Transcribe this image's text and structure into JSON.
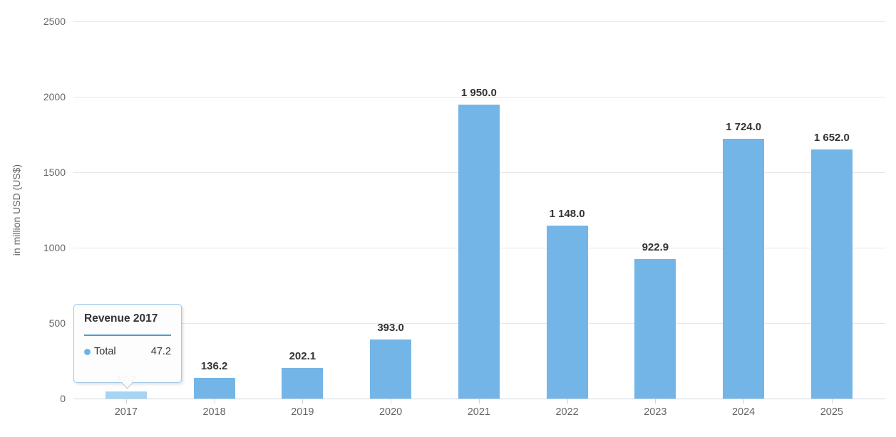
{
  "chart_data": {
    "type": "bar",
    "title": "",
    "categories": [
      "2017",
      "2018",
      "2019",
      "2020",
      "2021",
      "2022",
      "2023",
      "2024",
      "2025"
    ],
    "series": [
      {
        "name": "Total",
        "values": [
          47.2,
          136.2,
          202.1,
          393.0,
          1950.0,
          1148.0,
          922.9,
          1724.0,
          1652.0
        ]
      }
    ],
    "data_labels": [
      "47.2",
      "136.2",
      "202.1",
      "393.0",
      "1 950.0",
      "1 148.0",
      "922.9",
      "1 724.0",
      "1 652.0"
    ],
    "xlabel": "",
    "ylabel": "in million USD (US$)",
    "ylim": [
      0,
      2500
    ],
    "yticks": [
      "0",
      "500",
      "1000",
      "1500",
      "2000",
      "2500"
    ],
    "grid": true,
    "legend_position": "none",
    "highlighted_category": "2017",
    "colors": {
      "bar": "#74b5e8",
      "bar_highlight": "#a6d4f4",
      "gridline": "#e7e7e7",
      "axis_line": "#cfd4da",
      "axis_label": "#666666",
      "data_label": "#333333",
      "axis_title": "#666666"
    }
  },
  "tooltip": {
    "title": "Revenue 2017",
    "rows": [
      {
        "label": "Total",
        "value": "47.2",
        "marker_color": "#6db4e6"
      }
    ],
    "border_color": "#a2c8e3",
    "divider_color": "#4e9bcd"
  }
}
